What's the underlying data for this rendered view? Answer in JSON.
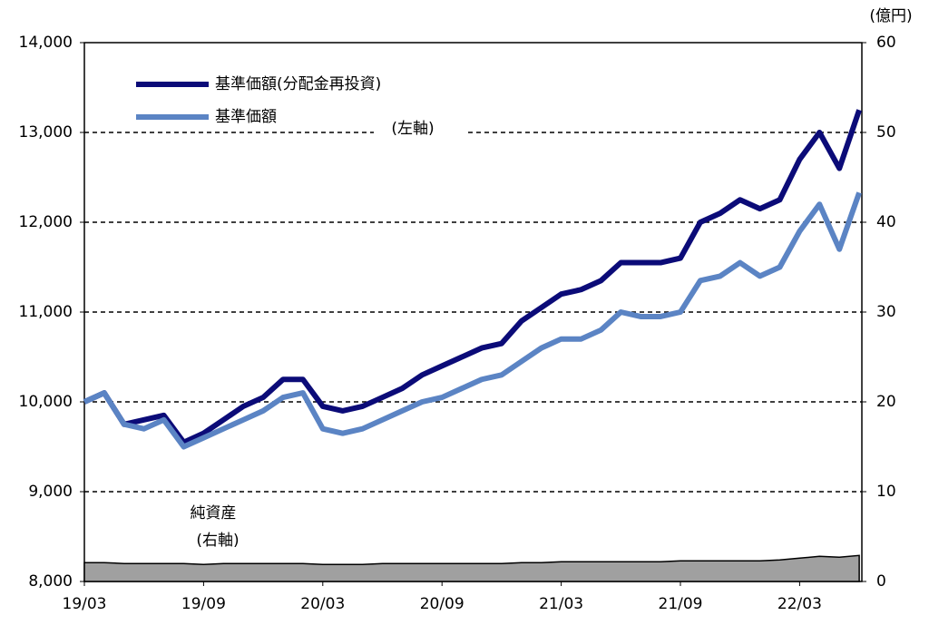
{
  "chart_data": {
    "type": "line",
    "x": [
      "19/03",
      null,
      null,
      null,
      null,
      null,
      "19/09",
      null,
      null,
      null,
      null,
      null,
      "20/03",
      null,
      null,
      null,
      null,
      null,
      "20/09",
      null,
      null,
      null,
      null,
      null,
      "21/03",
      null,
      null,
      null,
      null,
      null,
      "21/09",
      null,
      null,
      null,
      null,
      null,
      "22/03",
      null,
      null,
      null
    ],
    "series": [
      {
        "name": "基準価額(分配金再投資)",
        "color": "#0b0b78",
        "values": [
          10000,
          10100,
          9750,
          9800,
          9850,
          9550,
          9650,
          9800,
          9950,
          10050,
          10250,
          10250,
          9950,
          9900,
          9950,
          10050,
          10150,
          10300,
          10400,
          10500,
          10600,
          10650,
          10900,
          11050,
          11200,
          11250,
          11350,
          11550,
          11550,
          11550,
          11600,
          12000,
          12100,
          12250,
          12150,
          12250,
          12700,
          13000,
          12600,
          13250
        ]
      },
      {
        "name": "基準価額",
        "color": "#5b84c4",
        "values": [
          10000,
          10100,
          9750,
          9700,
          9800,
          9500,
          9600,
          9700,
          9800,
          9900,
          10050,
          10100,
          9700,
          9650,
          9700,
          9800,
          9900,
          10000,
          10050,
          10150,
          10250,
          10300,
          10450,
          10600,
          10700,
          10700,
          10800,
          11000,
          10950,
          10950,
          11000,
          11350,
          11400,
          11550,
          11400,
          11500,
          11900,
          12200,
          11700,
          12330
        ]
      },
      {
        "name": "純資産",
        "color": "#a0a0a0",
        "axis": "y2",
        "values": [
          2.1,
          2.1,
          2.0,
          2.0,
          2.0,
          2.0,
          1.9,
          2.0,
          2.0,
          2.0,
          2.0,
          2.0,
          1.9,
          1.9,
          1.9,
          2.0,
          2.0,
          2.0,
          2.0,
          2.0,
          2.0,
          2.0,
          2.1,
          2.1,
          2.2,
          2.2,
          2.2,
          2.2,
          2.2,
          2.2,
          2.3,
          2.3,
          2.3,
          2.3,
          2.3,
          2.4,
          2.6,
          2.8,
          2.7,
          2.9
        ]
      }
    ],
    "ylim": [
      8000,
      14000
    ],
    "yticks": [
      {
        "value": 8000,
        "label": "8,000"
      },
      {
        "value": 9000,
        "label": "9,000"
      },
      {
        "value": 10000,
        "label": "10,000"
      },
      {
        "value": 11000,
        "label": "11,000"
      },
      {
        "value": 12000,
        "label": "12,000"
      },
      {
        "value": 13000,
        "label": "13,000"
      },
      {
        "value": 14000,
        "label": "14,000"
      }
    ],
    "y2lim": [
      0,
      60
    ],
    "y2ticks": [
      0,
      10,
      20,
      30,
      40,
      50,
      60
    ],
    "y2_unit": "(億円)",
    "annotations": [
      "(左軸)",
      "純資産",
      "(右軸)"
    ],
    "grid": true
  }
}
